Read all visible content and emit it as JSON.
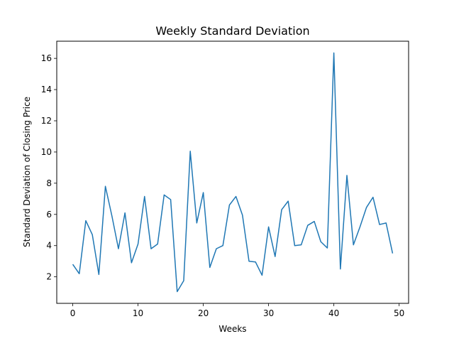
{
  "chart_data": {
    "type": "line",
    "title": "Weekly Standard Deviation",
    "xlabel": "Weeks",
    "ylabel": "Standard Deviation of Closing Price",
    "xlim": [
      -2.45,
      51.45
    ],
    "ylim": [
      0.3,
      17.1
    ],
    "xticks": [
      0,
      10,
      20,
      30,
      40,
      50
    ],
    "yticks": [
      2,
      4,
      6,
      8,
      10,
      12,
      14,
      16
    ],
    "grid": false,
    "series": [
      {
        "color": "#1f77b4",
        "x": [
          0,
          1,
          2,
          3,
          4,
          5,
          6,
          7,
          8,
          9,
          10,
          11,
          12,
          13,
          14,
          15,
          16,
          17,
          18,
          19,
          20,
          21,
          22,
          23,
          24,
          25,
          26,
          27,
          28,
          29,
          30,
          31,
          32,
          33,
          34,
          35,
          36,
          37,
          38,
          39,
          40,
          41,
          42,
          43,
          44,
          45,
          46,
          47,
          48,
          49
        ],
        "y": [
          2.8,
          2.2,
          5.6,
          4.7,
          2.15,
          7.8,
          5.9,
          3.8,
          6.1,
          2.9,
          4.1,
          7.15,
          3.8,
          4.1,
          7.25,
          6.95,
          1.05,
          1.75,
          10.05,
          5.45,
          7.4,
          2.6,
          3.8,
          4.0,
          6.6,
          7.15,
          5.95,
          3.0,
          2.95,
          2.1,
          5.2,
          3.3,
          6.3,
          6.85,
          4.0,
          4.05,
          5.3,
          5.55,
          4.25,
          3.85,
          16.35,
          2.5,
          8.5,
          4.05,
          5.2,
          6.45,
          7.1,
          5.35,
          5.45,
          3.5
        ]
      }
    ]
  }
}
